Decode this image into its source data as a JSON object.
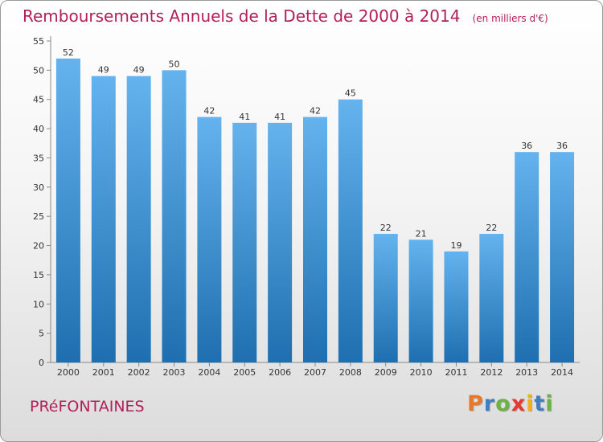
{
  "chart_data": {
    "type": "bar",
    "title": "Remboursements Annuels de la Dette de 2000 à 2014",
    "subtitle": "(en milliers d'€)",
    "categories": [
      "2000",
      "2001",
      "2002",
      "2003",
      "2004",
      "2005",
      "2006",
      "2007",
      "2008",
      "2009",
      "2010",
      "2011",
      "2012",
      "2013",
      "2014"
    ],
    "values": [
      52,
      49,
      49,
      50,
      42,
      41,
      41,
      42,
      45,
      22,
      21,
      19,
      22,
      36,
      36
    ],
    "ylim": [
      0,
      55
    ],
    "yticks": [
      0,
      5,
      10,
      15,
      20,
      25,
      30,
      35,
      40,
      45,
      50,
      55
    ],
    "grid": false,
    "xlabel": "",
    "ylabel": ""
  },
  "commune": "PRéFONTAINES",
  "logo": {
    "letters": [
      "P",
      "r",
      "o",
      "x",
      "i",
      "t",
      "i"
    ],
    "colors": [
      "#e8792a",
      "#3e7fc4",
      "#6ab344",
      "#e23b2f",
      "#f2b01e",
      "#3e7fc4",
      "#6ab344"
    ]
  },
  "colors": {
    "bar_top": "#64b3ee",
    "bar_bottom": "#1f6fb0",
    "accent": "#b2205a"
  }
}
